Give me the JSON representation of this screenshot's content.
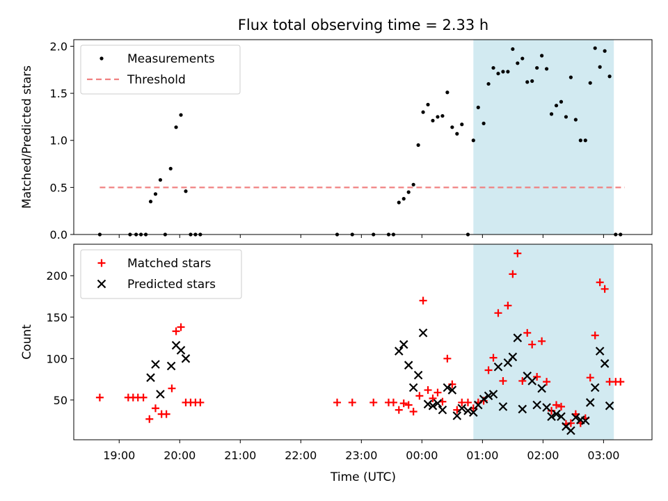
{
  "chart_data": {
    "title": "Flux total observing time = 2.33 h",
    "xlabel": "Time (UTC)",
    "x_unit": "hours UTC (values past 24 are after midnight)",
    "xlim": [
      18.25,
      27.8
    ],
    "x_ticks": [
      19,
      20,
      21,
      22,
      23,
      24,
      25,
      26,
      27
    ],
    "x_tick_labels": [
      "19:00",
      "20:00",
      "21:00",
      "22:00",
      "23:00",
      "00:00",
      "01:00",
      "02:00",
      "03:00"
    ],
    "highlight_span": [
      24.85,
      27.17
    ],
    "highlight_color": "#add8e6",
    "panels": [
      {
        "type": "scatter",
        "ylabel": "Matched/Predicted stars",
        "ylim": [
          0,
          2.07
        ],
        "y_ticks": [
          0.0,
          0.5,
          1.0,
          1.5,
          2.0
        ],
        "y_tick_labels": [
          "0.0",
          "0.5",
          "1.0",
          "1.5",
          "2.0"
        ],
        "legend_position": "top-left",
        "series": [
          {
            "name": "Measurements",
            "marker": "dot",
            "color": "#000000",
            "points": [
              [
                18.68,
                0
              ],
              [
                19.18,
                0
              ],
              [
                19.28,
                0
              ],
              [
                19.36,
                0
              ],
              [
                19.44,
                0
              ],
              [
                19.52,
                0.35
              ],
              [
                19.6,
                0.43
              ],
              [
                19.68,
                0.58
              ],
              [
                19.76,
                0
              ],
              [
                19.85,
                0.7
              ],
              [
                19.94,
                1.14
              ],
              [
                20.02,
                1.27
              ],
              [
                20.1,
                0.46
              ],
              [
                20.18,
                0
              ],
              [
                20.26,
                0
              ],
              [
                20.34,
                0
              ],
              [
                22.6,
                0
              ],
              [
                22.85,
                0
              ],
              [
                23.2,
                0
              ],
              [
                23.45,
                0
              ],
              [
                23.53,
                0
              ],
              [
                23.62,
                0.34
              ],
              [
                23.7,
                0.38
              ],
              [
                23.78,
                0.45
              ],
              [
                23.86,
                0.53
              ],
              [
                23.94,
                0.95
              ],
              [
                24.02,
                1.3
              ],
              [
                24.1,
                1.38
              ],
              [
                24.18,
                1.21
              ],
              [
                24.26,
                1.25
              ],
              [
                24.34,
                1.26
              ],
              [
                24.42,
                1.51
              ],
              [
                24.5,
                1.14
              ],
              [
                24.58,
                1.07
              ],
              [
                24.66,
                1.17
              ],
              [
                24.76,
                0
              ],
              [
                24.85,
                1.0
              ],
              [
                24.93,
                1.35
              ],
              [
                25.02,
                1.18
              ],
              [
                25.1,
                1.6
              ],
              [
                25.18,
                1.77
              ],
              [
                25.26,
                1.71
              ],
              [
                25.34,
                1.73
              ],
              [
                25.42,
                1.73
              ],
              [
                25.5,
                1.97
              ],
              [
                25.58,
                1.82
              ],
              [
                25.66,
                1.87
              ],
              [
                25.74,
                1.62
              ],
              [
                25.82,
                1.63
              ],
              [
                25.9,
                1.77
              ],
              [
                25.98,
                1.9
              ],
              [
                26.06,
                1.76
              ],
              [
                26.14,
                1.28
              ],
              [
                26.22,
                1.37
              ],
              [
                26.3,
                1.41
              ],
              [
                26.38,
                1.25
              ],
              [
                26.46,
                1.67
              ],
              [
                26.54,
                1.22
              ],
              [
                26.62,
                1.0
              ],
              [
                26.7,
                1.0
              ],
              [
                26.78,
                1.61
              ],
              [
                26.86,
                1.98
              ],
              [
                26.94,
                1.78
              ],
              [
                27.02,
                1.95
              ],
              [
                27.1,
                1.68
              ],
              [
                27.2,
                0
              ],
              [
                27.28,
                0
              ]
            ]
          },
          {
            "name": "Threshold",
            "marker": "dashed-line",
            "color": "#f08080",
            "points": [
              [
                18.68,
                0.5
              ],
              [
                27.35,
                0.5
              ]
            ]
          }
        ]
      },
      {
        "type": "scatter",
        "ylabel": "Count",
        "ylim": [
          2,
          238
        ],
        "y_ticks": [
          50,
          100,
          150,
          200
        ],
        "y_tick_labels": [
          "50",
          "100",
          "150",
          "200"
        ],
        "legend_position": "top-left",
        "series": [
          {
            "name": "Matched stars",
            "marker": "plus",
            "color": "#ff0000",
            "points": [
              [
                18.68,
                53
              ],
              [
                19.15,
                53
              ],
              [
                19.23,
                53
              ],
              [
                19.31,
                53
              ],
              [
                19.4,
                53
              ],
              [
                19.5,
                27
              ],
              [
                19.6,
                40
              ],
              [
                19.7,
                33
              ],
              [
                19.78,
                33
              ],
              [
                19.87,
                64
              ],
              [
                19.94,
                133
              ],
              [
                20.02,
                138
              ],
              [
                20.1,
                47
              ],
              [
                20.18,
                47
              ],
              [
                20.26,
                47
              ],
              [
                20.34,
                47
              ],
              [
                22.6,
                47
              ],
              [
                22.85,
                47
              ],
              [
                23.2,
                47
              ],
              [
                23.45,
                47
              ],
              [
                23.53,
                47
              ],
              [
                23.62,
                38
              ],
              [
                23.7,
                46
              ],
              [
                23.78,
                44
              ],
              [
                23.86,
                36
              ],
              [
                23.96,
                55
              ],
              [
                24.02,
                170
              ],
              [
                24.1,
                62
              ],
              [
                24.18,
                52
              ],
              [
                24.26,
                59
              ],
              [
                24.34,
                48
              ],
              [
                24.42,
                100
              ],
              [
                24.5,
                69
              ],
              [
                24.58,
                38
              ],
              [
                24.66,
                47
              ],
              [
                24.76,
                47
              ],
              [
                24.85,
                40
              ],
              [
                24.93,
                47
              ],
              [
                25.02,
                49
              ],
              [
                25.1,
                86
              ],
              [
                25.18,
                101
              ],
              [
                25.26,
                155
              ],
              [
                25.34,
                73
              ],
              [
                25.42,
                164
              ],
              [
                25.5,
                202
              ],
              [
                25.58,
                227
              ],
              [
                25.66,
                73
              ],
              [
                25.74,
                131
              ],
              [
                25.82,
                117
              ],
              [
                25.9,
                78
              ],
              [
                25.98,
                121
              ],
              [
                26.06,
                72
              ],
              [
                26.14,
                37
              ],
              [
                26.22,
                44
              ],
              [
                26.3,
                42
              ],
              [
                26.38,
                21
              ],
              [
                26.46,
                22
              ],
              [
                26.54,
                33
              ],
              [
                26.62,
                22
              ],
              [
                26.7,
                28
              ],
              [
                26.78,
                77
              ],
              [
                26.86,
                128
              ],
              [
                26.94,
                192
              ],
              [
                27.02,
                184
              ],
              [
                27.1,
                72
              ],
              [
                27.2,
                72
              ],
              [
                27.28,
                72
              ]
            ]
          },
          {
            "name": "Predicted stars",
            "marker": "x",
            "color": "#000000",
            "points": [
              [
                19.52,
                77
              ],
              [
                19.6,
                93
              ],
              [
                19.68,
                57
              ],
              [
                19.86,
                91
              ],
              [
                19.94,
                116
              ],
              [
                20.02,
                110
              ],
              [
                20.1,
                100
              ],
              [
                23.62,
                109
              ],
              [
                23.7,
                117
              ],
              [
                23.78,
                92
              ],
              [
                23.86,
                65
              ],
              [
                23.94,
                80
              ],
              [
                24.02,
                131
              ],
              [
                24.1,
                45
              ],
              [
                24.18,
                43
              ],
              [
                24.26,
                46
              ],
              [
                24.34,
                38
              ],
              [
                24.42,
                65
              ],
              [
                24.5,
                62
              ],
              [
                24.58,
                31
              ],
              [
                24.66,
                40
              ],
              [
                24.76,
                37
              ],
              [
                24.85,
                35
              ],
              [
                24.93,
                44
              ],
              [
                25.02,
                51
              ],
              [
                25.1,
                55
              ],
              [
                25.18,
                57
              ],
              [
                25.26,
                90
              ],
              [
                25.34,
                42
              ],
              [
                25.42,
                95
              ],
              [
                25.5,
                102
              ],
              [
                25.58,
                125
              ],
              [
                25.66,
                39
              ],
              [
                25.74,
                79
              ],
              [
                25.82,
                73
              ],
              [
                25.9,
                44
              ],
              [
                25.98,
                64
              ],
              [
                26.06,
                41
              ],
              [
                26.14,
                30
              ],
              [
                26.22,
                33
              ],
              [
                26.3,
                30
              ],
              [
                26.38,
                18
              ],
              [
                26.46,
                13
              ],
              [
                26.54,
                29
              ],
              [
                26.62,
                26
              ],
              [
                26.7,
                25
              ],
              [
                26.78,
                47
              ],
              [
                26.86,
                65
              ],
              [
                26.94,
                109
              ],
              [
                27.02,
                94
              ],
              [
                27.1,
                43
              ]
            ]
          }
        ]
      }
    ]
  }
}
